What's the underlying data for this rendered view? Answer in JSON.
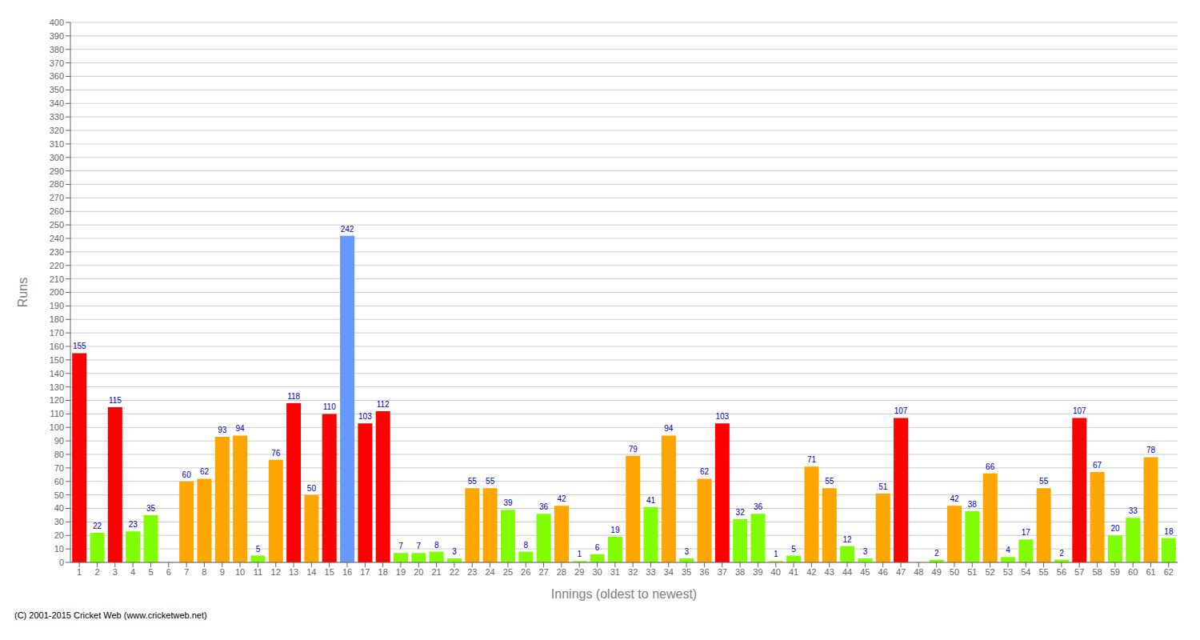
{
  "chart_data": {
    "type": "bar",
    "xlabel": "Innings (oldest to newest)",
    "ylabel": "Runs",
    "categories": [
      "1",
      "2",
      "3",
      "4",
      "5",
      "6",
      "7",
      "8",
      "9",
      "10",
      "11",
      "12",
      "13",
      "14",
      "15",
      "16",
      "17",
      "18",
      "19",
      "20",
      "21",
      "22",
      "23",
      "24",
      "25",
      "26",
      "27",
      "28",
      "29",
      "30",
      "31",
      "32",
      "33",
      "34",
      "35",
      "36",
      "37",
      "38",
      "39",
      "40",
      "41",
      "42",
      "43",
      "44",
      "45",
      "46",
      "47",
      "48",
      "49",
      "50",
      "51",
      "52",
      "53",
      "54",
      "55",
      "56",
      "57",
      "58",
      "59",
      "60",
      "61",
      "62"
    ],
    "values": [
      155,
      22,
      115,
      23,
      35,
      0,
      60,
      62,
      93,
      94,
      5,
      76,
      118,
      50,
      110,
      242,
      103,
      112,
      7,
      7,
      8,
      3,
      55,
      55,
      39,
      8,
      36,
      42,
      1,
      6,
      19,
      79,
      41,
      94,
      3,
      62,
      103,
      32,
      36,
      1,
      5,
      71,
      55,
      12,
      3,
      51,
      107,
      0,
      2,
      42,
      38,
      66,
      4,
      17,
      55,
      2,
      107,
      67,
      20,
      33,
      78,
      18
    ],
    "colors": [
      "#ff0000",
      "#80ff00",
      "#ff0000",
      "#80ff00",
      "#80ff00",
      "#80ff00",
      "#ffa500",
      "#ffa500",
      "#ffa500",
      "#ffa500",
      "#80ff00",
      "#ffa500",
      "#ff0000",
      "#ffa500",
      "#ff0000",
      "#6699ff",
      "#ff0000",
      "#ff0000",
      "#80ff00",
      "#80ff00",
      "#80ff00",
      "#80ff00",
      "#ffa500",
      "#ffa500",
      "#80ff00",
      "#80ff00",
      "#80ff00",
      "#ffa500",
      "#80ff00",
      "#80ff00",
      "#80ff00",
      "#ffa500",
      "#80ff00",
      "#ffa500",
      "#80ff00",
      "#ffa500",
      "#ff0000",
      "#80ff00",
      "#80ff00",
      "#80ff00",
      "#80ff00",
      "#ffa500",
      "#ffa500",
      "#80ff00",
      "#80ff00",
      "#ffa500",
      "#ff0000",
      "#80ff00",
      "#80ff00",
      "#ffa500",
      "#80ff00",
      "#ffa500",
      "#80ff00",
      "#80ff00",
      "#ffa500",
      "#80ff00",
      "#ff0000",
      "#ffa500",
      "#80ff00",
      "#80ff00",
      "#ffa500",
      "#80ff00"
    ],
    "ylim": [
      0,
      400
    ],
    "yticks": [
      0,
      10,
      20,
      30,
      40,
      50,
      60,
      70,
      80,
      90,
      100,
      110,
      120,
      130,
      140,
      150,
      160,
      170,
      180,
      190,
      200,
      210,
      220,
      230,
      240,
      250,
      260,
      270,
      280,
      290,
      300,
      310,
      320,
      330,
      340,
      350,
      360,
      370,
      380,
      390,
      400
    ],
    "grid": true,
    "data_labels": true,
    "annotations": [
      "(C) 2001-2015 Cricket Web (www.cricketweb.net)"
    ]
  }
}
